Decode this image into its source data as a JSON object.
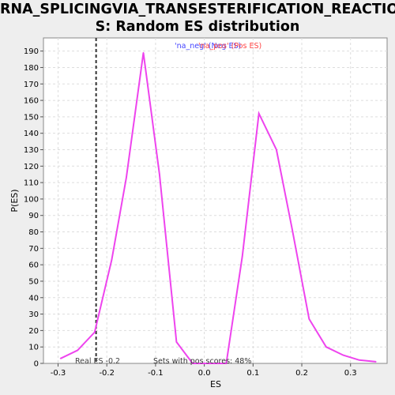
{
  "chart_data": {
    "type": "line",
    "title_line1": "RNA_SPLICINGVIA_TRANSESTERIFICATION_REACTION",
    "title_line2": "S: Random ES distribution",
    "xlabel": "ES",
    "ylabel": "P(ES)",
    "xlim": [
      -0.33,
      0.375
    ],
    "ylim": [
      0,
      198
    ],
    "xticks": [
      "-0.3",
      "-0.2",
      "-0.1",
      "0.0",
      "0.1",
      "0.2",
      "0.3"
    ],
    "xtick_values": [
      -0.3,
      -0.2,
      -0.1,
      0.0,
      0.1,
      0.2,
      0.3
    ],
    "ytick_values": [
      0,
      10,
      20,
      30,
      40,
      50,
      60,
      70,
      80,
      90,
      100,
      110,
      120,
      130,
      140,
      150,
      160,
      170,
      180,
      190
    ],
    "grid": true,
    "series": [
      {
        "color": "#ee44ee",
        "x": [
          -0.295,
          -0.26,
          -0.225,
          -0.19,
          -0.16,
          -0.125,
          -0.092,
          -0.057,
          -0.024,
          0.01,
          0.045,
          0.078,
          0.112,
          0.148,
          0.18,
          0.215,
          0.25,
          0.285,
          0.318,
          0.352
        ],
        "values": [
          3,
          8,
          19,
          63,
          113,
          189,
          115,
          13,
          0,
          0,
          0,
          65,
          152,
          130,
          82,
          27,
          10,
          5,
          2,
          1
        ]
      }
    ],
    "real_es": {
      "x": -0.222,
      "label": "Real ES -0.2"
    },
    "legend": {
      "neg_label": "'na_neg' (Neg ES)",
      "neg_color": "#4444ff",
      "pos_label": "'na_pos' (Pos ES)",
      "pos_color": "#ff4444"
    },
    "annotation": "Sets with pos scores: 48%"
  }
}
